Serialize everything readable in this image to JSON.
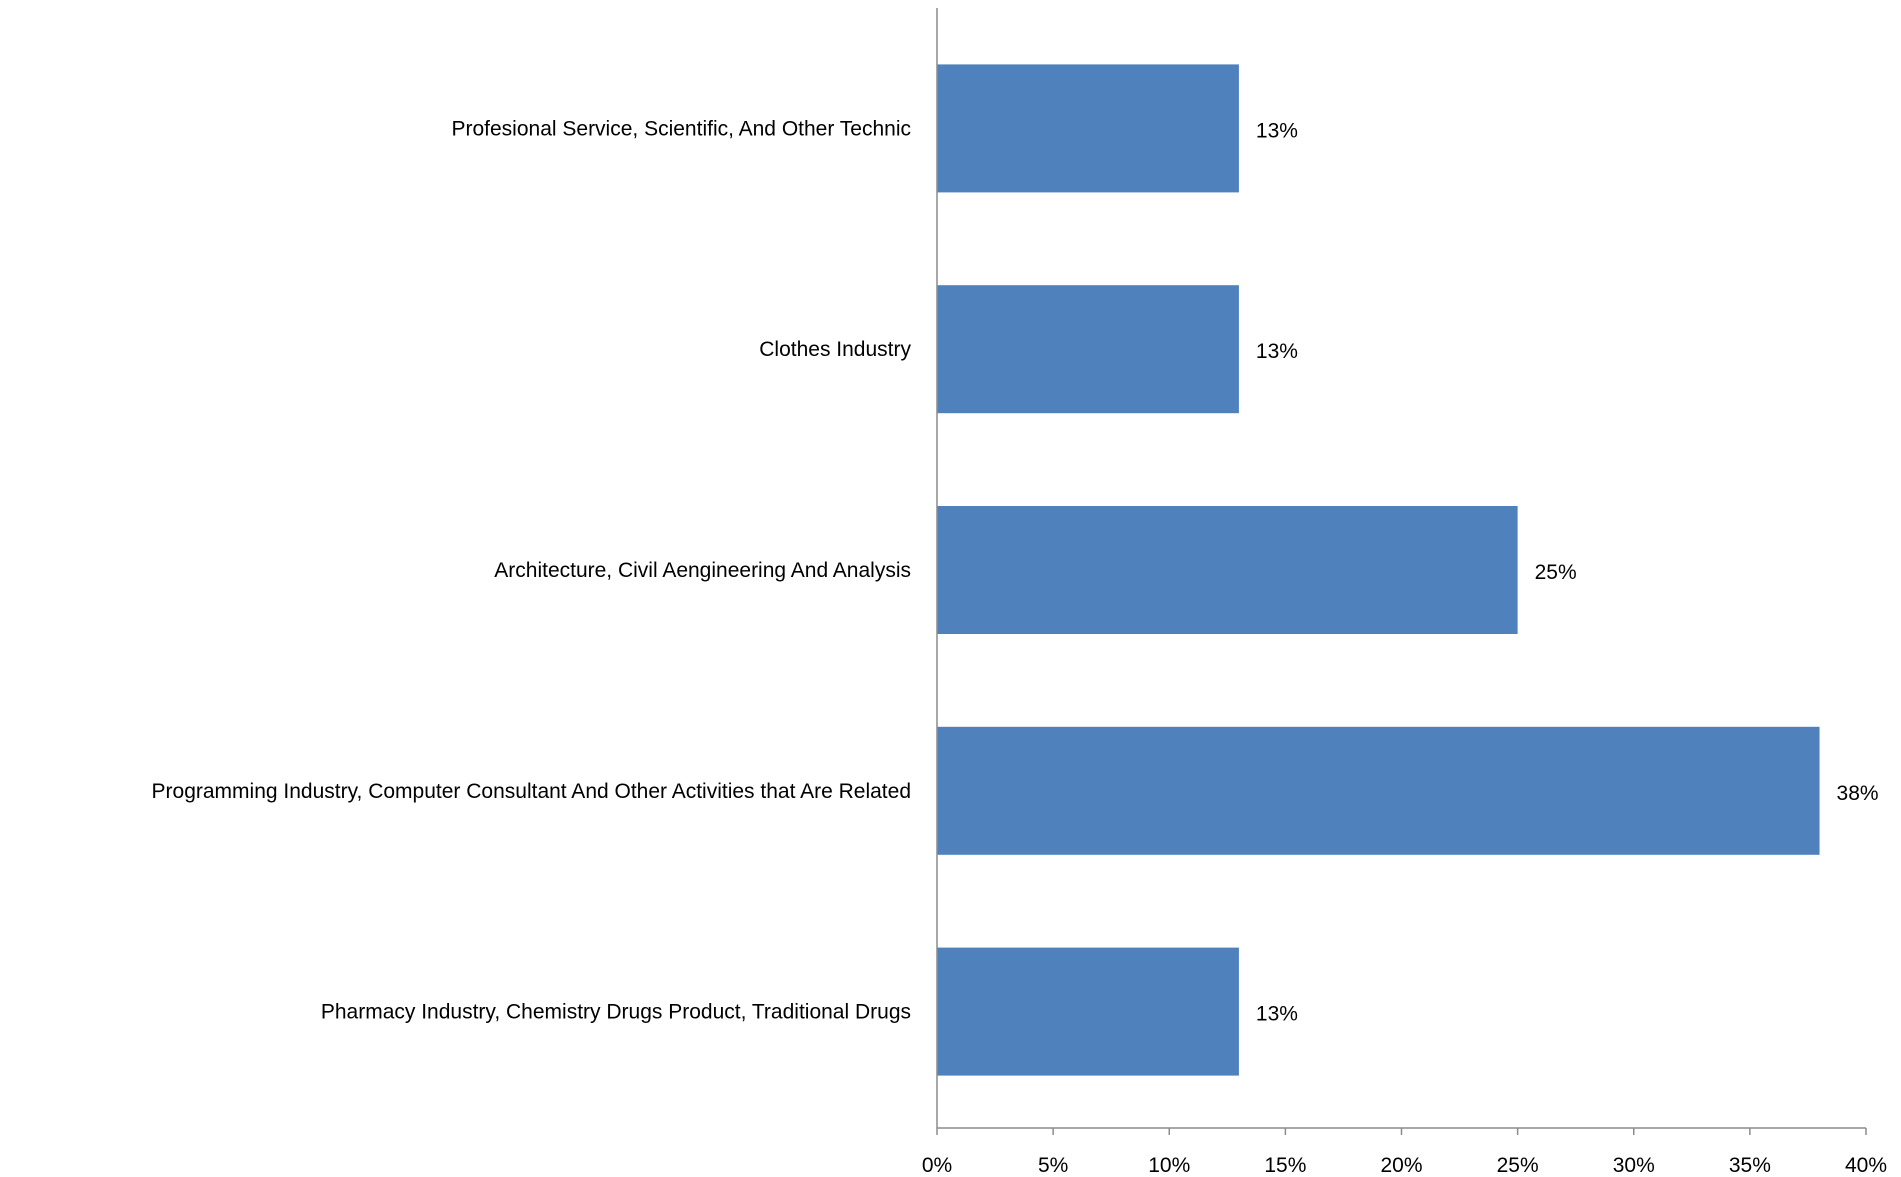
{
  "chart_data": {
    "type": "bar",
    "orientation": "horizontal",
    "categories": [
      "Profesional Service, Scientific, And Other Technic",
      "Clothes Industry",
      "Architecture, Civil Aengineering And Analysis",
      "Programming Industry, Computer Consultant And Other Activities that Are Related",
      "Pharmacy Industry, Chemistry Drugs Product, Traditional Drugs"
    ],
    "values": [
      13,
      13,
      25,
      38,
      13
    ],
    "data_labels": [
      "13%",
      "13%",
      "25%",
      "38%",
      "13%"
    ],
    "x_ticks": [
      "0%",
      "5%",
      "10%",
      "15%",
      "20%",
      "25%",
      "30%",
      "35%",
      "40%"
    ],
    "xlim": [
      0,
      40
    ],
    "unit": "%",
    "grid": false,
    "legend": false,
    "title": "",
    "xlabel": "",
    "ylabel": "",
    "bar_color": "#4f81bd",
    "axis_color": "#8c8c8c"
  }
}
